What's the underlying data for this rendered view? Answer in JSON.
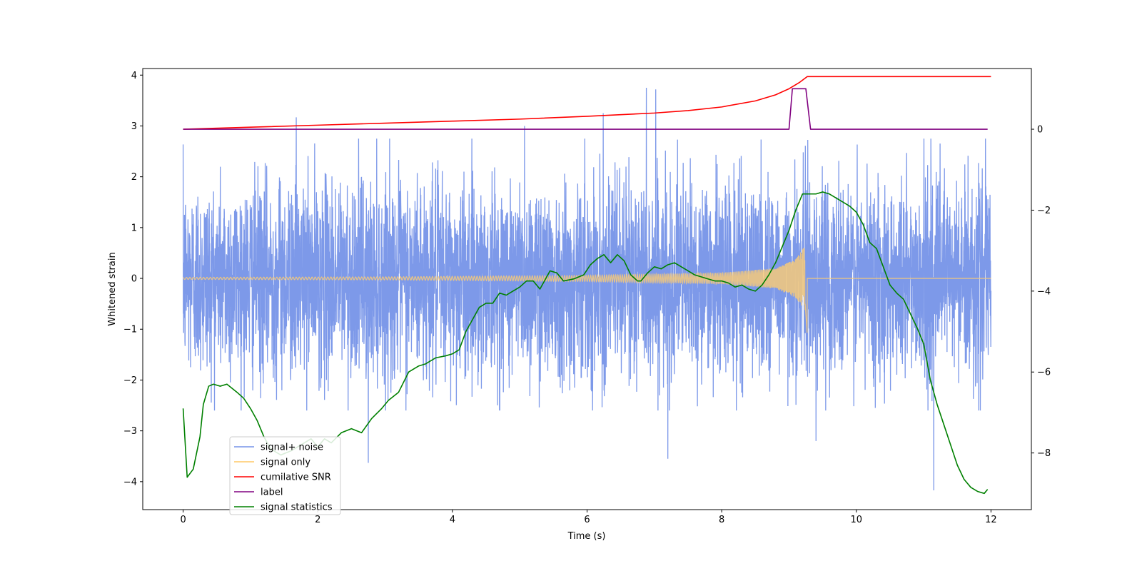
{
  "chart_data": {
    "type": "line",
    "title": "",
    "xlabel": "Time (s)",
    "ylabel": "Whitened strain",
    "y2label": "",
    "xlim": [
      -0.6,
      12.6
    ],
    "ylim": [
      -4.55,
      4.13
    ],
    "y2lim": [
      -9.4,
      1.5
    ],
    "x_ticks": [
      0,
      2,
      4,
      6,
      8,
      10,
      12
    ],
    "y_ticks": [
      -4,
      -3,
      -2,
      -1,
      0,
      1,
      2,
      3,
      4
    ],
    "y2_ticks": [
      -8,
      -6,
      -4,
      -2,
      0
    ],
    "legend_position": "lower-left",
    "series": [
      {
        "name": "signal+ noise",
        "axis": "left",
        "color": "#7694e8",
        "description": "dense white-noise strain, roughly within ±2.5 with spikes to about 3.7 and -4.2",
        "x_range": [
          0,
          12
        ],
        "spikes": [
          {
            "x": 1.68,
            "y": 3.17
          },
          {
            "x": 2.75,
            "y": -3.63
          },
          {
            "x": 5.07,
            "y": 3.0
          },
          {
            "x": 6.24,
            "y": 3.25
          },
          {
            "x": 6.88,
            "y": 3.75
          },
          {
            "x": 7.02,
            "y": 3.72
          },
          {
            "x": 7.2,
            "y": -3.55
          },
          {
            "x": 9.4,
            "y": -3.2
          },
          {
            "x": 11.15,
            "y": -4.17
          }
        ]
      },
      {
        "name": "signal only",
        "axis": "left",
        "color": "#f5c97a",
        "description": "chirp signal with amplitude growing until merger near t = 9.27 s, then zero",
        "merger_time": 9.27,
        "amplitude_points": [
          [
            0,
            0.02
          ],
          [
            3,
            0.03
          ],
          [
            6,
            0.06
          ],
          [
            8,
            0.11
          ],
          [
            8.8,
            0.2
          ],
          [
            9.1,
            0.38
          ],
          [
            9.27,
            0.7
          ]
        ]
      },
      {
        "name": "cumilative SNR",
        "axis": "right",
        "color": "#ff0000",
        "points": [
          [
            0,
            0.0
          ],
          [
            1,
            0.05
          ],
          [
            2,
            0.1
          ],
          [
            3,
            0.15
          ],
          [
            4,
            0.2
          ],
          [
            5,
            0.25
          ],
          [
            6,
            0.32
          ],
          [
            7,
            0.4
          ],
          [
            7.5,
            0.46
          ],
          [
            8,
            0.55
          ],
          [
            8.5,
            0.7
          ],
          [
            8.8,
            0.85
          ],
          [
            9.0,
            1.0
          ],
          [
            9.15,
            1.15
          ],
          [
            9.27,
            1.3
          ],
          [
            12,
            1.3
          ]
        ]
      },
      {
        "name": "label",
        "axis": "right",
        "color": "#800080",
        "points": [
          [
            0,
            0
          ],
          [
            9.0,
            0
          ],
          [
            9.05,
            1
          ],
          [
            9.25,
            1
          ],
          [
            9.32,
            0
          ],
          [
            11.95,
            0
          ]
        ]
      },
      {
        "name": "signal statistics",
        "axis": "right",
        "color": "#008000",
        "points": [
          [
            0.0,
            -6.9
          ],
          [
            0.06,
            -8.6
          ],
          [
            0.15,
            -8.4
          ],
          [
            0.25,
            -7.6
          ],
          [
            0.3,
            -6.8
          ],
          [
            0.38,
            -6.35
          ],
          [
            0.45,
            -6.3
          ],
          [
            0.55,
            -6.35
          ],
          [
            0.65,
            -6.3
          ],
          [
            0.8,
            -6.5
          ],
          [
            0.9,
            -6.65
          ],
          [
            1.0,
            -6.9
          ],
          [
            1.1,
            -7.2
          ],
          [
            1.2,
            -7.6
          ],
          [
            1.3,
            -7.9
          ],
          [
            1.45,
            -8.05
          ],
          [
            1.6,
            -7.95
          ],
          [
            1.75,
            -7.8
          ],
          [
            1.9,
            -7.65
          ],
          [
            2.0,
            -7.85
          ],
          [
            2.1,
            -7.65
          ],
          [
            2.2,
            -7.75
          ],
          [
            2.35,
            -7.5
          ],
          [
            2.5,
            -7.4
          ],
          [
            2.65,
            -7.5
          ],
          [
            2.8,
            -7.15
          ],
          [
            2.95,
            -6.9
          ],
          [
            3.05,
            -6.7
          ],
          [
            3.2,
            -6.5
          ],
          [
            3.35,
            -6.0
          ],
          [
            3.5,
            -5.85
          ],
          [
            3.6,
            -5.8
          ],
          [
            3.75,
            -5.65
          ],
          [
            3.9,
            -5.6
          ],
          [
            4.0,
            -5.55
          ],
          [
            4.1,
            -5.45
          ],
          [
            4.2,
            -5.0
          ],
          [
            4.3,
            -4.7
          ],
          [
            4.4,
            -4.4
          ],
          [
            4.5,
            -4.3
          ],
          [
            4.6,
            -4.3
          ],
          [
            4.7,
            -4.05
          ],
          [
            4.8,
            -4.1
          ],
          [
            4.9,
            -4.0
          ],
          [
            5.0,
            -3.9
          ],
          [
            5.1,
            -3.75
          ],
          [
            5.2,
            -3.75
          ],
          [
            5.3,
            -3.95
          ],
          [
            5.45,
            -3.5
          ],
          [
            5.55,
            -3.55
          ],
          [
            5.65,
            -3.75
          ],
          [
            5.8,
            -3.7
          ],
          [
            5.95,
            -3.6
          ],
          [
            6.05,
            -3.35
          ],
          [
            6.15,
            -3.2
          ],
          [
            6.25,
            -3.1
          ],
          [
            6.35,
            -3.3
          ],
          [
            6.45,
            -3.1
          ],
          [
            6.55,
            -3.25
          ],
          [
            6.65,
            -3.6
          ],
          [
            6.75,
            -3.75
          ],
          [
            6.8,
            -3.75
          ],
          [
            6.9,
            -3.55
          ],
          [
            7.0,
            -3.4
          ],
          [
            7.1,
            -3.45
          ],
          [
            7.2,
            -3.35
          ],
          [
            7.3,
            -3.3
          ],
          [
            7.4,
            -3.4
          ],
          [
            7.5,
            -3.5
          ],
          [
            7.6,
            -3.6
          ],
          [
            7.7,
            -3.65
          ],
          [
            7.8,
            -3.7
          ],
          [
            7.9,
            -3.75
          ],
          [
            8.0,
            -3.75
          ],
          [
            8.1,
            -3.8
          ],
          [
            8.2,
            -3.9
          ],
          [
            8.3,
            -3.85
          ],
          [
            8.4,
            -3.95
          ],
          [
            8.5,
            -4.0
          ],
          [
            8.6,
            -3.85
          ],
          [
            8.7,
            -3.6
          ],
          [
            8.8,
            -3.3
          ],
          [
            8.9,
            -2.9
          ],
          [
            9.0,
            -2.5
          ],
          [
            9.1,
            -2.0
          ],
          [
            9.2,
            -1.6
          ],
          [
            9.3,
            -1.6
          ],
          [
            9.4,
            -1.6
          ],
          [
            9.5,
            -1.55
          ],
          [
            9.6,
            -1.6
          ],
          [
            9.7,
            -1.7
          ],
          [
            9.8,
            -1.8
          ],
          [
            9.9,
            -1.9
          ],
          [
            10.0,
            -2.05
          ],
          [
            10.1,
            -2.35
          ],
          [
            10.2,
            -2.8
          ],
          [
            10.3,
            -2.95
          ],
          [
            10.4,
            -3.4
          ],
          [
            10.5,
            -3.85
          ],
          [
            10.6,
            -4.05
          ],
          [
            10.7,
            -4.2
          ],
          [
            10.8,
            -4.55
          ],
          [
            10.9,
            -4.9
          ],
          [
            11.0,
            -5.3
          ],
          [
            11.1,
            -6.2
          ],
          [
            11.2,
            -6.8
          ],
          [
            11.3,
            -7.3
          ],
          [
            11.4,
            -7.8
          ],
          [
            11.5,
            -8.3
          ],
          [
            11.6,
            -8.65
          ],
          [
            11.7,
            -8.85
          ],
          [
            11.8,
            -8.95
          ],
          [
            11.9,
            -9.0
          ],
          [
            11.95,
            -8.9
          ]
        ]
      }
    ]
  }
}
